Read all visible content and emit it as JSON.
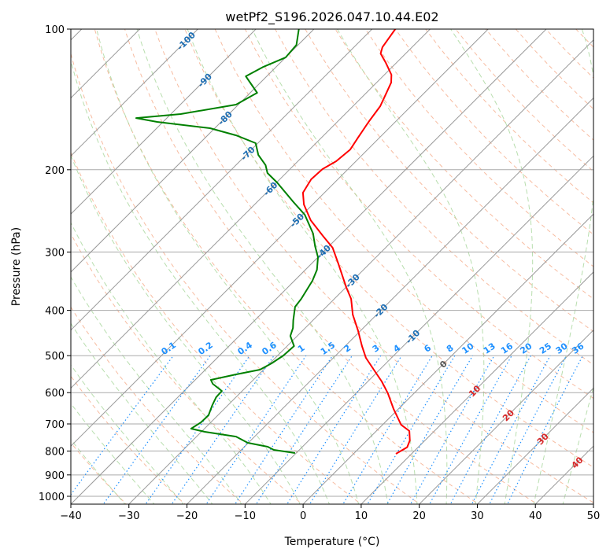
{
  "chart_data": {
    "type": "skew-t",
    "title": "wetPf2_S196.2026.047.10.44.E02",
    "xlabel": "Temperature (°C)",
    "ylabel": "Pressure (hPa)",
    "xlim": [
      -40,
      50
    ],
    "ylim_hpa": [
      1039,
      100
    ],
    "x_ticks": [
      -40,
      -30,
      -20,
      -10,
      0,
      10,
      20,
      30,
      40,
      50
    ],
    "y_ticks": [
      100,
      200,
      300,
      400,
      500,
      600,
      700,
      800,
      900,
      1000
    ],
    "grid": true,
    "colors": {
      "temperature": "#ff0000",
      "dewpoint": "#008000",
      "isotherm_label": "#1f6fb4",
      "isotherm_label_warm": "#d62728",
      "isotherm_label_zero": "#555555",
      "mixing_ratio": "#1e90ff",
      "dry_adiabat": "#f4a582",
      "moist_adiabat": "#a6d69a"
    },
    "isotherm_labels": [
      "-100",
      "-90",
      "-80",
      "-70",
      "-60",
      "-50",
      "-40",
      "-30",
      "-20",
      "-10",
      "0",
      "10",
      "20",
      "30",
      "40"
    ],
    "mixing_ratio_labels": [
      "0.1",
      "0.2",
      "0.4",
      "0.6",
      "1",
      "1.5",
      "2",
      "3",
      "4",
      "6",
      "8",
      "10",
      "13",
      "16",
      "20",
      "25",
      "30",
      "36"
    ],
    "series": [
      {
        "name": "Temperature",
        "points": [
          [
            100,
            -66.0
          ],
          [
            109.3,
            -65.1
          ],
          [
            112.8,
            -64.3
          ],
          [
            118.1,
            -61.8
          ],
          [
            125.2,
            -58.8
          ],
          [
            130.1,
            -57.5
          ],
          [
            137.9,
            -56.4
          ],
          [
            146.2,
            -55.3
          ],
          [
            158,
            -54.6
          ],
          [
            170.8,
            -53.7
          ],
          [
            181,
            -53.0
          ],
          [
            191.8,
            -53.4
          ],
          [
            199.4,
            -54.4
          ],
          [
            209.7,
            -54.6
          ],
          [
            224,
            -53.7
          ],
          [
            237.4,
            -51.5
          ],
          [
            256.6,
            -47.6
          ],
          [
            277.2,
            -42.8
          ],
          [
            293.8,
            -39.1
          ],
          [
            317.6,
            -35.4
          ],
          [
            356.6,
            -30.0
          ],
          [
            378,
            -27.1
          ],
          [
            408.6,
            -24.1
          ],
          [
            441.4,
            -20.5
          ],
          [
            477,
            -17.1
          ],
          [
            505.4,
            -14.4
          ],
          [
            535.8,
            -11.0
          ],
          [
            567.8,
            -7.6
          ],
          [
            602,
            -4.5
          ],
          [
            650.5,
            -0.8
          ],
          [
            703,
            3.2
          ],
          [
            725,
            5.7
          ],
          [
            759.5,
            7.4
          ],
          [
            785,
            8.1
          ],
          [
            811,
            7.3
          ]
        ]
      },
      {
        "name": "Dewpoint",
        "points": [
          [
            100,
            -82.6
          ],
          [
            108.1,
            -80.3
          ],
          [
            115.0,
            -80.0
          ],
          [
            120.4,
            -82.2
          ],
          [
            126.2,
            -83.6
          ],
          [
            136.9,
            -78.8
          ],
          [
            145.1,
            -80.4
          ],
          [
            152.0,
            -88.3
          ],
          [
            155.0,
            -95.3
          ],
          [
            158.0,
            -91.0
          ],
          [
            163.0,
            -80.8
          ],
          [
            168.8,
            -75.1
          ],
          [
            175.4,
            -70.4
          ],
          [
            185.9,
            -67.9
          ],
          [
            195.5,
            -64.9
          ],
          [
            203.3,
            -63.2
          ],
          [
            213.0,
            -59.9
          ],
          [
            234.6,
            -53.7
          ],
          [
            249.6,
            -49.6
          ],
          [
            274.0,
            -44.9
          ],
          [
            291.5,
            -42.4
          ],
          [
            307.8,
            -40.0
          ],
          [
            327.5,
            -38.0
          ],
          [
            345.7,
            -36.9
          ],
          [
            378.0,
            -35.7
          ],
          [
            393.0,
            -35.4
          ],
          [
            419.8,
            -33.4
          ],
          [
            436.4,
            -32.1
          ],
          [
            453.6,
            -31.2
          ],
          [
            477.0,
            -28.8
          ],
          [
            499.7,
            -29.0
          ],
          [
            519.4,
            -29.7
          ],
          [
            535.8,
            -30.6
          ],
          [
            548.4,
            -33.9
          ],
          [
            563.4,
            -37.3
          ],
          [
            574.5,
            -36.3
          ],
          [
            595.0,
            -33.5
          ],
          [
            613.8,
            -33.4
          ],
          [
            637.9,
            -32.7
          ],
          [
            670.9,
            -31.6
          ],
          [
            694.8,
            -31.7
          ],
          [
            716.6,
            -32.3
          ],
          [
            727.8,
            -29.4
          ],
          [
            745.0,
            -23.2
          ],
          [
            768.4,
            -20.1
          ],
          [
            783.2,
            -16.0
          ],
          [
            795.6,
            -14.4
          ],
          [
            807.9,
            -10.2
          ]
        ]
      }
    ]
  }
}
